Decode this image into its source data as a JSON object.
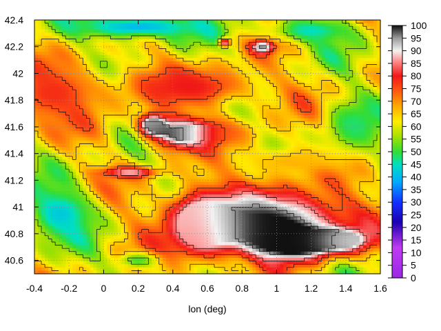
{
  "chart_data": {
    "type": "heatmap",
    "title": "",
    "xlabel": "lon (deg)",
    "ylabel": "",
    "xlim": [
      -0.4,
      1.6
    ],
    "ylim": [
      40.5,
      42.4
    ],
    "x_ticks": [
      -0.4,
      -0.2,
      0,
      0.2,
      0.4,
      0.6,
      0.8,
      1,
      1.2,
      1.4,
      1.6
    ],
    "x_tick_labels": [
      "-0.4",
      "-0.2",
      "0",
      "0.2",
      "0.4",
      "0.6",
      "0.8",
      "1",
      "1.2",
      "1.4",
      "1.6"
    ],
    "y_ticks": [
      40.6,
      40.8,
      41,
      41.2,
      41.4,
      41.6,
      41.8,
      42,
      42.2,
      42.4
    ],
    "y_tick_labels": [
      "40.6",
      "40.8",
      "41",
      "41.2",
      "41.4",
      "41.6",
      "41.8",
      "42",
      "42.2",
      "42.4"
    ],
    "colorbar": {
      "range": [
        0,
        100
      ],
      "ticks": [
        0,
        5,
        10,
        15,
        20,
        25,
        30,
        35,
        40,
        45,
        50,
        55,
        60,
        65,
        70,
        75,
        80,
        85,
        90,
        95,
        100
      ],
      "tick_labels": [
        "0",
        "5",
        "10",
        "15",
        "20",
        "25",
        "30",
        "35",
        "40",
        "45",
        "50",
        "55",
        "60",
        "65",
        "70",
        "75",
        "80",
        "85",
        "90",
        "95",
        "100"
      ],
      "stops": [
        {
          "v": 0,
          "color": "#9a28e6"
        },
        {
          "v": 12,
          "color": "#c03cf0"
        },
        {
          "v": 22,
          "color": "#1a00b0"
        },
        {
          "v": 30,
          "color": "#1430ff"
        },
        {
          "v": 38,
          "color": "#00aaff"
        },
        {
          "v": 45,
          "color": "#00e0c0"
        },
        {
          "v": 50,
          "color": "#33dd33"
        },
        {
          "v": 56,
          "color": "#a6e000"
        },
        {
          "v": 62,
          "color": "#ffee00"
        },
        {
          "v": 68,
          "color": "#ffaa00"
        },
        {
          "v": 74,
          "color": "#ff5a10"
        },
        {
          "v": 80,
          "color": "#f01818"
        },
        {
          "v": 86,
          "color": "#ff9090"
        },
        {
          "v": 90,
          "color": "#f2f2f2"
        },
        {
          "v": 95,
          "color": "#9a9a9a"
        },
        {
          "v": 100,
          "color": "#101010"
        }
      ]
    },
    "grid": true,
    "grid_style": "dotted",
    "contours": true,
    "features": [
      {
        "lon": 0.95,
        "lat": 40.9,
        "dx": 0.6,
        "dy": 0.3,
        "value": 100
      },
      {
        "lon": 1.1,
        "lat": 40.72,
        "dx": 0.3,
        "dy": 0.14,
        "value": 100
      },
      {
        "lon": 1.4,
        "lat": 40.75,
        "dx": 0.18,
        "dy": 0.1,
        "value": 90
      },
      {
        "lon": 0.45,
        "lat": 41.55,
        "dx": 0.22,
        "dy": 0.14,
        "value": 100
      },
      {
        "lon": 0.28,
        "lat": 41.62,
        "dx": 0.1,
        "dy": 0.1,
        "value": 95
      },
      {
        "lon": 0.15,
        "lat": 41.26,
        "dx": 0.2,
        "dy": 0.05,
        "value": 88
      },
      {
        "lon": 0.92,
        "lat": 42.2,
        "dx": 0.08,
        "dy": 0.06,
        "value": 98
      },
      {
        "lon": 0.7,
        "lat": 42.23,
        "dx": 0.04,
        "dy": 0.04,
        "value": 90
      },
      {
        "lon": -0.3,
        "lat": 41.85,
        "dx": 0.35,
        "dy": 0.3,
        "value": 78
      },
      {
        "lon": 0.5,
        "lat": 41.9,
        "dx": 0.5,
        "dy": 0.2,
        "value": 80
      },
      {
        "lon": 0.55,
        "lat": 40.85,
        "dx": 0.25,
        "dy": 0.35,
        "value": 82
      },
      {
        "lon": 1.1,
        "lat": 41.35,
        "dx": 0.45,
        "dy": 0.15,
        "value": 66
      },
      {
        "lon": 0.2,
        "lat": 42.35,
        "dx": 0.5,
        "dy": 0.12,
        "value": 40
      },
      {
        "lon": 1.2,
        "lat": 42.32,
        "dx": 0.3,
        "dy": 0.12,
        "value": 45
      },
      {
        "lon": 1.45,
        "lat": 41.6,
        "dx": 0.2,
        "dy": 0.25,
        "value": 48
      },
      {
        "lon": -0.25,
        "lat": 40.95,
        "dx": 0.25,
        "dy": 0.25,
        "value": 42
      },
      {
        "lon": 0.2,
        "lat": 40.6,
        "dx": 0.15,
        "dy": 0.08,
        "value": 50
      },
      {
        "lon": 0.7,
        "lat": 41.55,
        "dx": 0.25,
        "dy": 0.12,
        "value": 72
      }
    ]
  }
}
